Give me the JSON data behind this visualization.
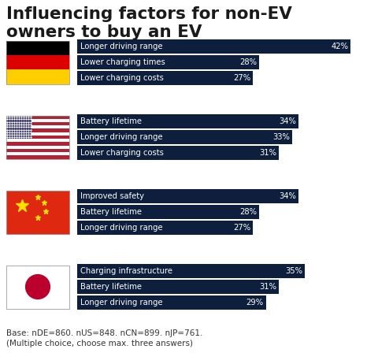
{
  "title": "Influencing factors for non-EV\nowners to buy an EV",
  "background_color": "#ffffff",
  "bar_color": "#0d1f3c",
  "text_color_white": "#ffffff",
  "text_color_dark": "#1a1a1a",
  "groups": [
    {
      "country": "DE",
      "bars": [
        {
          "label": "Longer driving range",
          "value": 42
        },
        {
          "label": "Lower charging times",
          "value": 28
        },
        {
          "label": "Lower charging costs",
          "value": 27
        }
      ]
    },
    {
      "country": "US",
      "bars": [
        {
          "label": "Battery lifetime",
          "value": 34
        },
        {
          "label": "Longer driving range",
          "value": 33
        },
        {
          "label": "Lower charging costs",
          "value": 31
        }
      ]
    },
    {
      "country": "CN",
      "bars": [
        {
          "label": "Improved safety",
          "value": 34
        },
        {
          "label": "Battery lifetime",
          "value": 28
        },
        {
          "label": "Longer driving range",
          "value": 27
        }
      ]
    },
    {
      "country": "JP",
      "bars": [
        {
          "label": "Charging infrastructure",
          "value": 35
        },
        {
          "label": "Battery lifetime",
          "value": 31
        },
        {
          "label": "Longer driving range",
          "value": 29
        }
      ]
    }
  ],
  "footnote": "Base: nDE=860. nUS=848. nCN=899. nJP=761.\n(Multiple choice, choose max. three answers)",
  "max_value": 45
}
